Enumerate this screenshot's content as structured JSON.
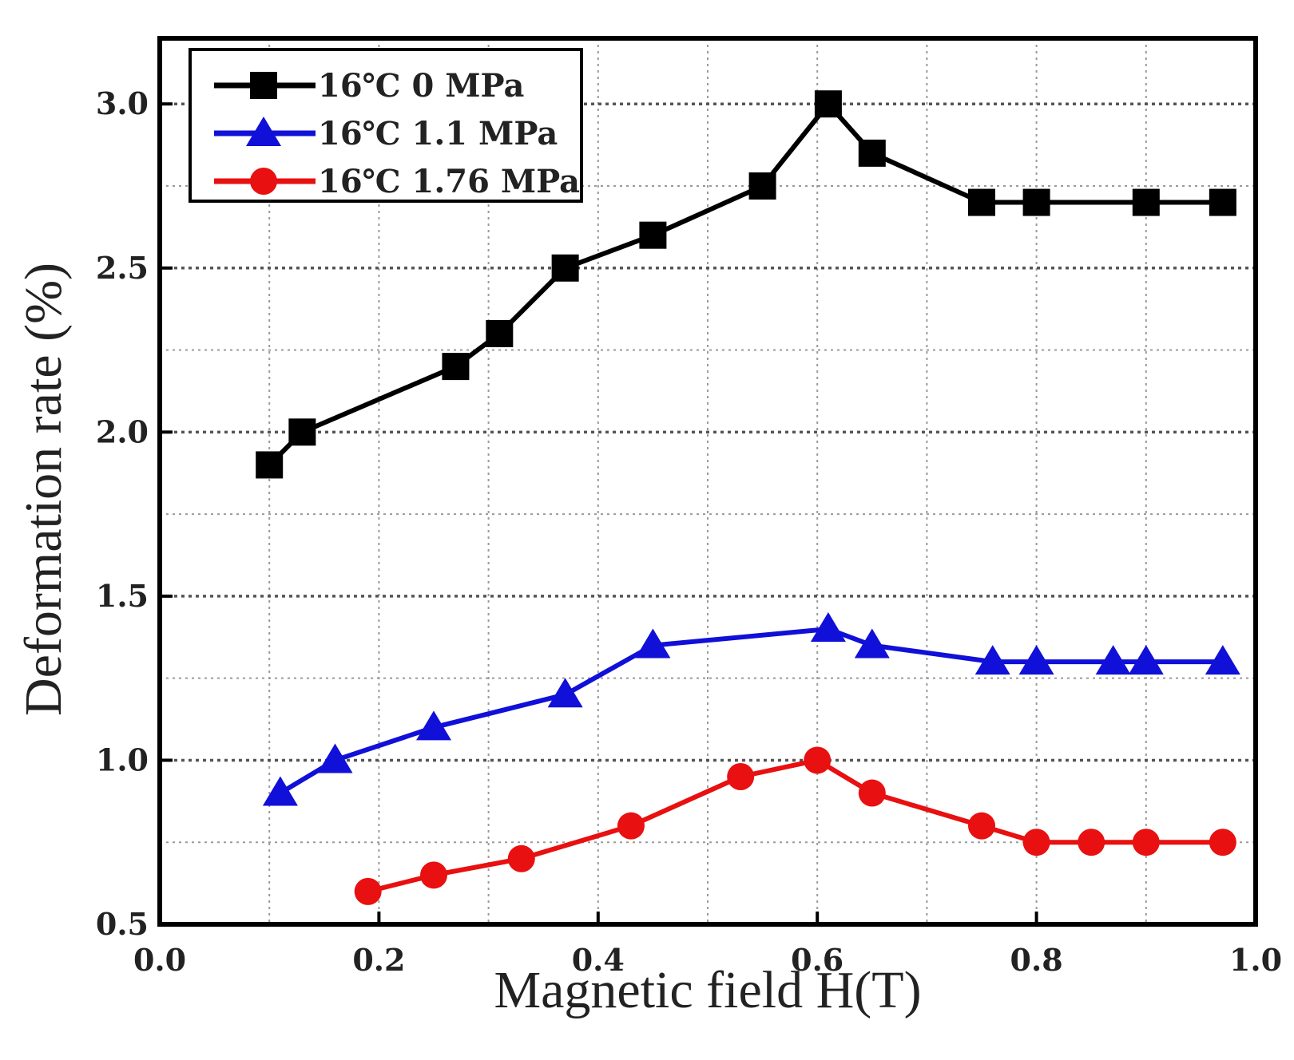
{
  "chart_data": {
    "type": "line",
    "xlabel": "Magnetic field H(T)",
    "ylabel": "Deformation rate (%)",
    "xlim": [
      0.0,
      1.0
    ],
    "ylim": [
      0.5,
      3.2
    ],
    "xticks": [
      0.0,
      0.2,
      0.4,
      0.6,
      0.8,
      1.0
    ],
    "xtick_labels": [
      "0.0",
      "0.2",
      "0.4",
      "0.6",
      "0.8",
      "1.0"
    ],
    "yticks": [
      0.5,
      1.0,
      1.5,
      2.0,
      2.5,
      3.0
    ],
    "ytick_labels": [
      "0.5",
      "1.0",
      "1.5",
      "2.0",
      "2.5",
      "3.0"
    ],
    "grid": true,
    "legend_position": "top-left",
    "series": [
      {
        "name": "16℃ 0 MPa",
        "marker": "square",
        "color": "#000000",
        "x": [
          0.1,
          0.13,
          0.27,
          0.31,
          0.37,
          0.45,
          0.55,
          0.61,
          0.65,
          0.75,
          0.8,
          0.9,
          0.97
        ],
        "y": [
          1.9,
          2.0,
          2.2,
          2.3,
          2.5,
          2.6,
          2.75,
          3.0,
          2.85,
          2.7,
          2.7,
          2.7,
          2.7
        ]
      },
      {
        "name": "16℃ 1.1 MPa",
        "marker": "triangle",
        "color": "#1010d8",
        "x": [
          0.11,
          0.16,
          0.25,
          0.37,
          0.45,
          0.61,
          0.65,
          0.76,
          0.8,
          0.87,
          0.9,
          0.97
        ],
        "y": [
          0.9,
          1.0,
          1.1,
          1.2,
          1.35,
          1.4,
          1.35,
          1.3,
          1.3,
          1.3,
          1.3,
          1.3
        ]
      },
      {
        "name": "16℃ 1.76 MPa",
        "marker": "circle",
        "color": "#e81010",
        "x": [
          0.19,
          0.25,
          0.33,
          0.43,
          0.53,
          0.6,
          0.65,
          0.75,
          0.8,
          0.85,
          0.9,
          0.97
        ],
        "y": [
          0.6,
          0.65,
          0.7,
          0.8,
          0.95,
          1.0,
          0.9,
          0.8,
          0.75,
          0.75,
          0.75,
          0.75
        ]
      }
    ]
  }
}
